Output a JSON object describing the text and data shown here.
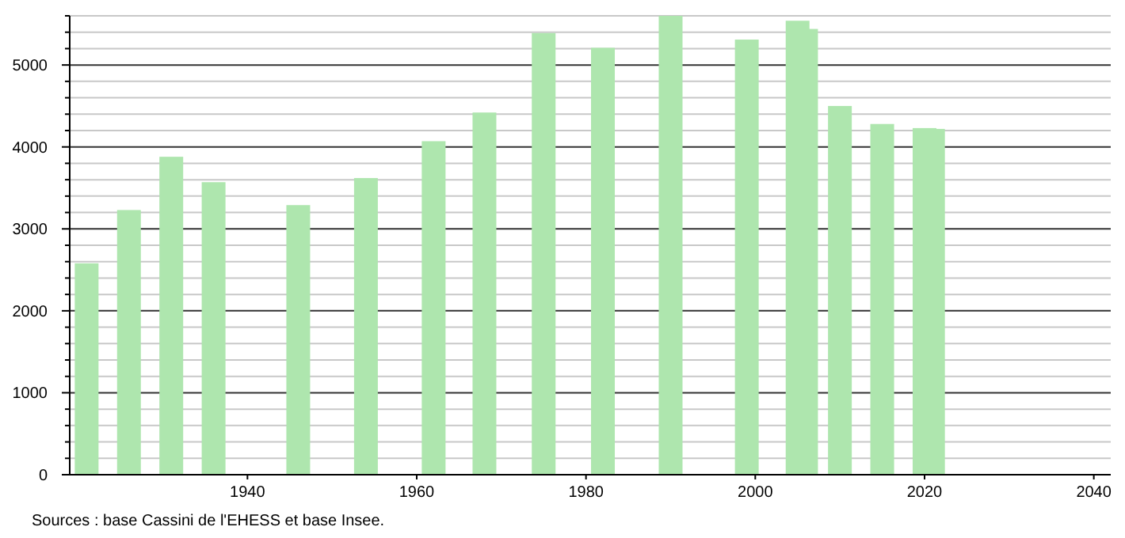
{
  "chart_data": {
    "type": "bar",
    "x": [
      1921,
      1926,
      1931,
      1936,
      1946,
      1954,
      1962,
      1968,
      1975,
      1982,
      1990,
      1999,
      2005,
      2006,
      2010,
      2015,
      2020,
      2021
    ],
    "values": [
      2580,
      3230,
      3880,
      3570,
      3290,
      3620,
      4070,
      4420,
      5390,
      5210,
      5600,
      5310,
      5540,
      5440,
      4500,
      4280,
      4230,
      4220
    ],
    "color": "#aee6ae",
    "xlim": [
      1919,
      2042
    ],
    "xticks": [
      1940,
      1960,
      1980,
      2000,
      2020,
      2040
    ],
    "ylim": [
      0,
      5600
    ],
    "yticks": [
      0,
      {
        "value": 200,
        "label": null
      },
      {
        "value": 400,
        "label": null
      },
      {
        "value": 600,
        "label": null
      },
      {
        "value": 800,
        "label": null
      },
      1000,
      {
        "value": 1200,
        "label": null
      },
      {
        "value": 1400,
        "label": null
      },
      {
        "value": 1600,
        "label": null
      },
      {
        "value": 1800,
        "label": null
      },
      2000,
      {
        "value": 2200,
        "label": null
      },
      {
        "value": 2400,
        "label": null
      },
      {
        "value": 2600,
        "label": null
      },
      {
        "value": 2800,
        "label": null
      },
      3000,
      {
        "value": 3200,
        "label": null
      },
      {
        "value": 3400,
        "label": null
      },
      {
        "value": 3600,
        "label": null
      },
      {
        "value": 3800,
        "label": null
      },
      4000,
      {
        "value": 4200,
        "label": null
      },
      {
        "value": 4400,
        "label": null
      },
      {
        "value": 4600,
        "label": null
      },
      {
        "value": 4800,
        "label": null
      },
      5000,
      {
        "value": 5200,
        "label": null
      },
      {
        "value": 5400,
        "label": null
      },
      {
        "value": 5600,
        "label": null
      }
    ],
    "grid": "y",
    "annotations": [
      "Sources : base Cassini de l'EHESS et base Insee."
    ]
  }
}
